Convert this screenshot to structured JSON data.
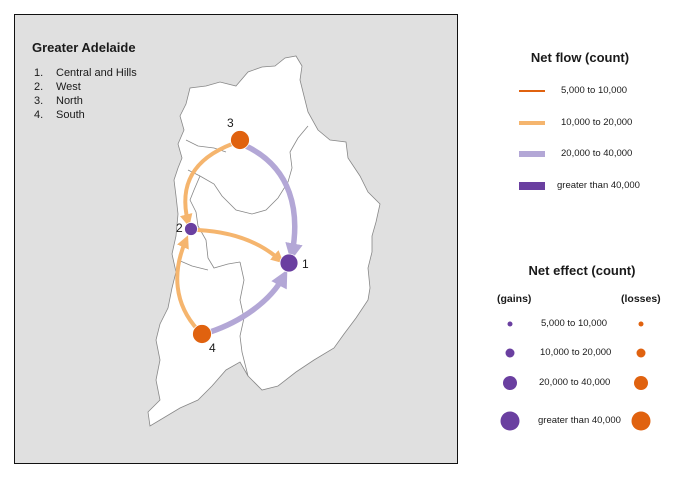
{
  "map": {
    "title": "Greater Adelaide",
    "regions": [
      {
        "num": "1.",
        "name": "Central and Hills",
        "label": "1"
      },
      {
        "num": "2.",
        "name": "West",
        "label": "2"
      },
      {
        "num": "3.",
        "name": "North",
        "label": "3"
      },
      {
        "num": "4.",
        "name": "South",
        "label": "4"
      }
    ],
    "colors": {
      "background": "#e0e0e0",
      "land": "#ffffff",
      "border": "#888888",
      "gain": "#6a3fa0",
      "loss": "#e0620f",
      "flow_light_orange": "#f5b56e",
      "flow_light_purple": "#b3a7d6"
    }
  },
  "legend": {
    "flow_title": "Net flow (count)",
    "flow_items": [
      {
        "label": "5,000  to 10,000",
        "color": "#e0620f"
      },
      {
        "label": "10,000  to 20,000",
        "color": "#f5b56e"
      },
      {
        "label": "20,000  to 40,000",
        "color": "#b3a7d6"
      },
      {
        "label": "greater than 40,000",
        "color": "#6a3fa0"
      }
    ],
    "effect_title": "Net effect (count)",
    "gains_label": "(gains)",
    "losses_label": "(losses)",
    "effect_items": [
      {
        "label": "5,000  to 10,000"
      },
      {
        "label": "10,000  to 20,000"
      },
      {
        "label": "20,000  to 40,000"
      },
      {
        "label": "greater than 40,000"
      }
    ]
  }
}
